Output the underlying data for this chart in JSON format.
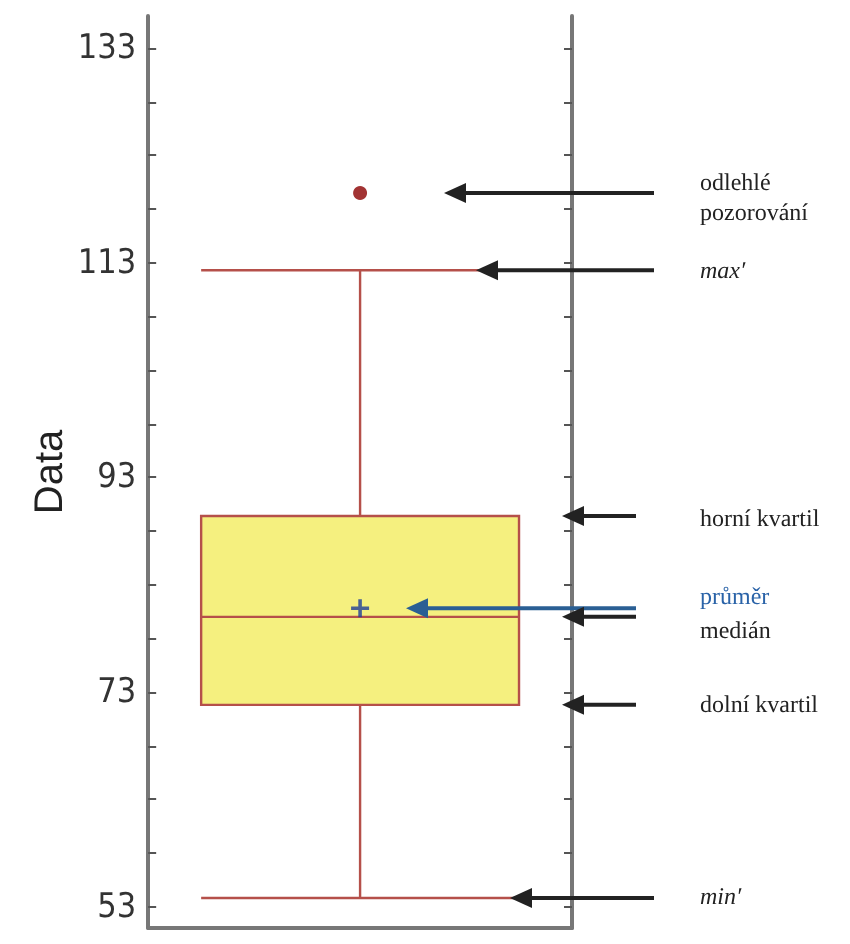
{
  "chart_data": {
    "type": "box",
    "ylabel": "Data",
    "categories": [
      null
    ],
    "boxes": [
      {
        "low": 53.8,
        "q1": 71.8,
        "median": 80,
        "q3": 89.4,
        "high": 112.3,
        "mean": 80.8,
        "outliers": [
          119.5
        ]
      }
    ],
    "color": "#f5f07f",
    "ylim": [
      51,
      136
    ],
    "yticks": [
      53,
      73,
      93,
      113,
      133
    ],
    "grid": false,
    "annotations": [
      "odlehlé pozorování",
      "max′",
      "horní kvartil",
      "průměr",
      "medián",
      "dolní kvartil",
      "min′"
    ]
  }
}
